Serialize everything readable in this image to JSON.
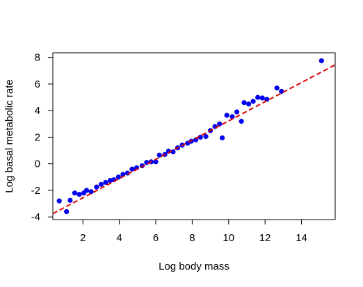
{
  "chart_data": {
    "type": "scatter",
    "title": "",
    "xlabel": "Log body mass",
    "ylabel": "Log basal metabolic rate",
    "xlim": [
      0.35,
      15.85
    ],
    "ylim": [
      -4.2,
      8.35
    ],
    "xticks": [
      2,
      4,
      6,
      8,
      10,
      12,
      14
    ],
    "yticks": [
      -4,
      -2,
      0,
      2,
      4,
      6,
      8
    ],
    "x_tick_labels": [
      "2",
      "4",
      "6",
      "8",
      "10",
      "12",
      "14"
    ],
    "y_tick_labels": [
      "-4",
      "-2",
      "0",
      "2",
      "4",
      "6",
      "8"
    ],
    "grid": false,
    "legend": "none",
    "colors": {
      "points": "#0000ff",
      "fit_line": "#dd0000"
    },
    "series": [
      {
        "kind": "points",
        "x": [
          0.7,
          1.1,
          1.3,
          1.55,
          1.8,
          2.05,
          2.2,
          2.45,
          2.75,
          3.0,
          3.25,
          3.5,
          3.7,
          3.95,
          4.2,
          4.45,
          4.7,
          4.95,
          5.25,
          5.5,
          5.75,
          6.0,
          6.2,
          6.5,
          6.7,
          6.95,
          7.2,
          7.45,
          7.75,
          7.95,
          8.2,
          8.45,
          8.75,
          9.0,
          9.25,
          9.5,
          9.65,
          9.9,
          10.2,
          10.45,
          10.7,
          10.85,
          11.1,
          11.35,
          11.6,
          11.85,
          12.1,
          12.65,
          12.9,
          15.1
        ],
        "y": [
          -2.8,
          -3.6,
          -2.75,
          -2.2,
          -2.3,
          -2.2,
          -2.0,
          -2.1,
          -1.75,
          -1.55,
          -1.4,
          -1.25,
          -1.2,
          -1.0,
          -0.8,
          -0.7,
          -0.4,
          -0.3,
          -0.15,
          0.1,
          0.15,
          0.15,
          0.65,
          0.7,
          0.95,
          0.9,
          1.2,
          1.4,
          1.55,
          1.7,
          1.8,
          2.0,
          2.05,
          2.5,
          2.8,
          3.0,
          1.95,
          3.65,
          3.55,
          3.9,
          3.2,
          4.6,
          4.5,
          4.7,
          5.0,
          4.95,
          4.85,
          5.7,
          5.45,
          7.75
        ]
      },
      {
        "kind": "fit-line",
        "dashed": true,
        "x": [
          0.35,
          15.85
        ],
        "y": [
          -3.75,
          7.45
        ]
      }
    ]
  }
}
